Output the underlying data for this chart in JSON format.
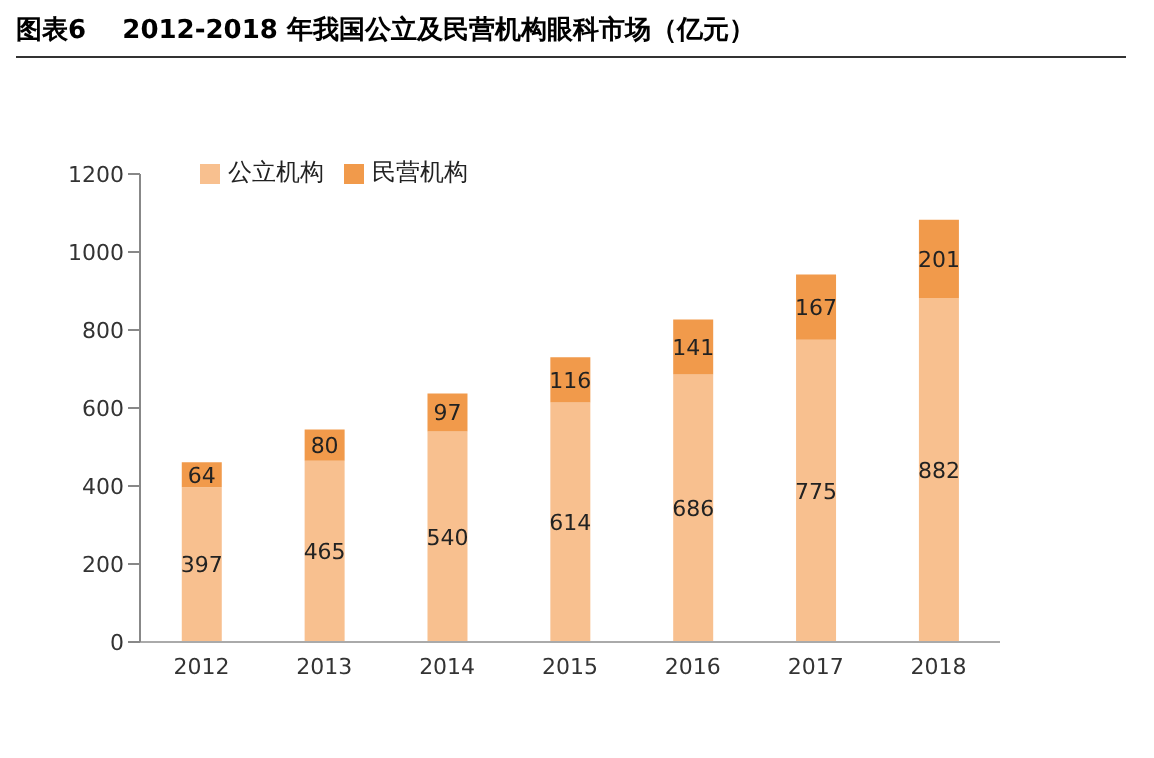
{
  "chart_data": {
    "type": "bar",
    "title": "图表6    2012-2018 年我国公立及民营机构眼科市场（亿元）",
    "categories": [
      "2012",
      "2013",
      "2014",
      "2015",
      "2016",
      "2017",
      "2018"
    ],
    "stacked": true,
    "series": [
      {
        "name": "公立机构",
        "color": "#f8c08f",
        "values": [
          397,
          465,
          540,
          614,
          686,
          775,
          882
        ]
      },
      {
        "name": "民营机构",
        "color": "#f19a4b",
        "values": [
          64,
          80,
          97,
          116,
          141,
          167,
          201
        ]
      }
    ],
    "ylim": [
      0,
      1200
    ],
    "yticks": [
      0,
      200,
      400,
      600,
      800,
      1000,
      1200
    ],
    "legend": "top left",
    "data_labels": true
  }
}
